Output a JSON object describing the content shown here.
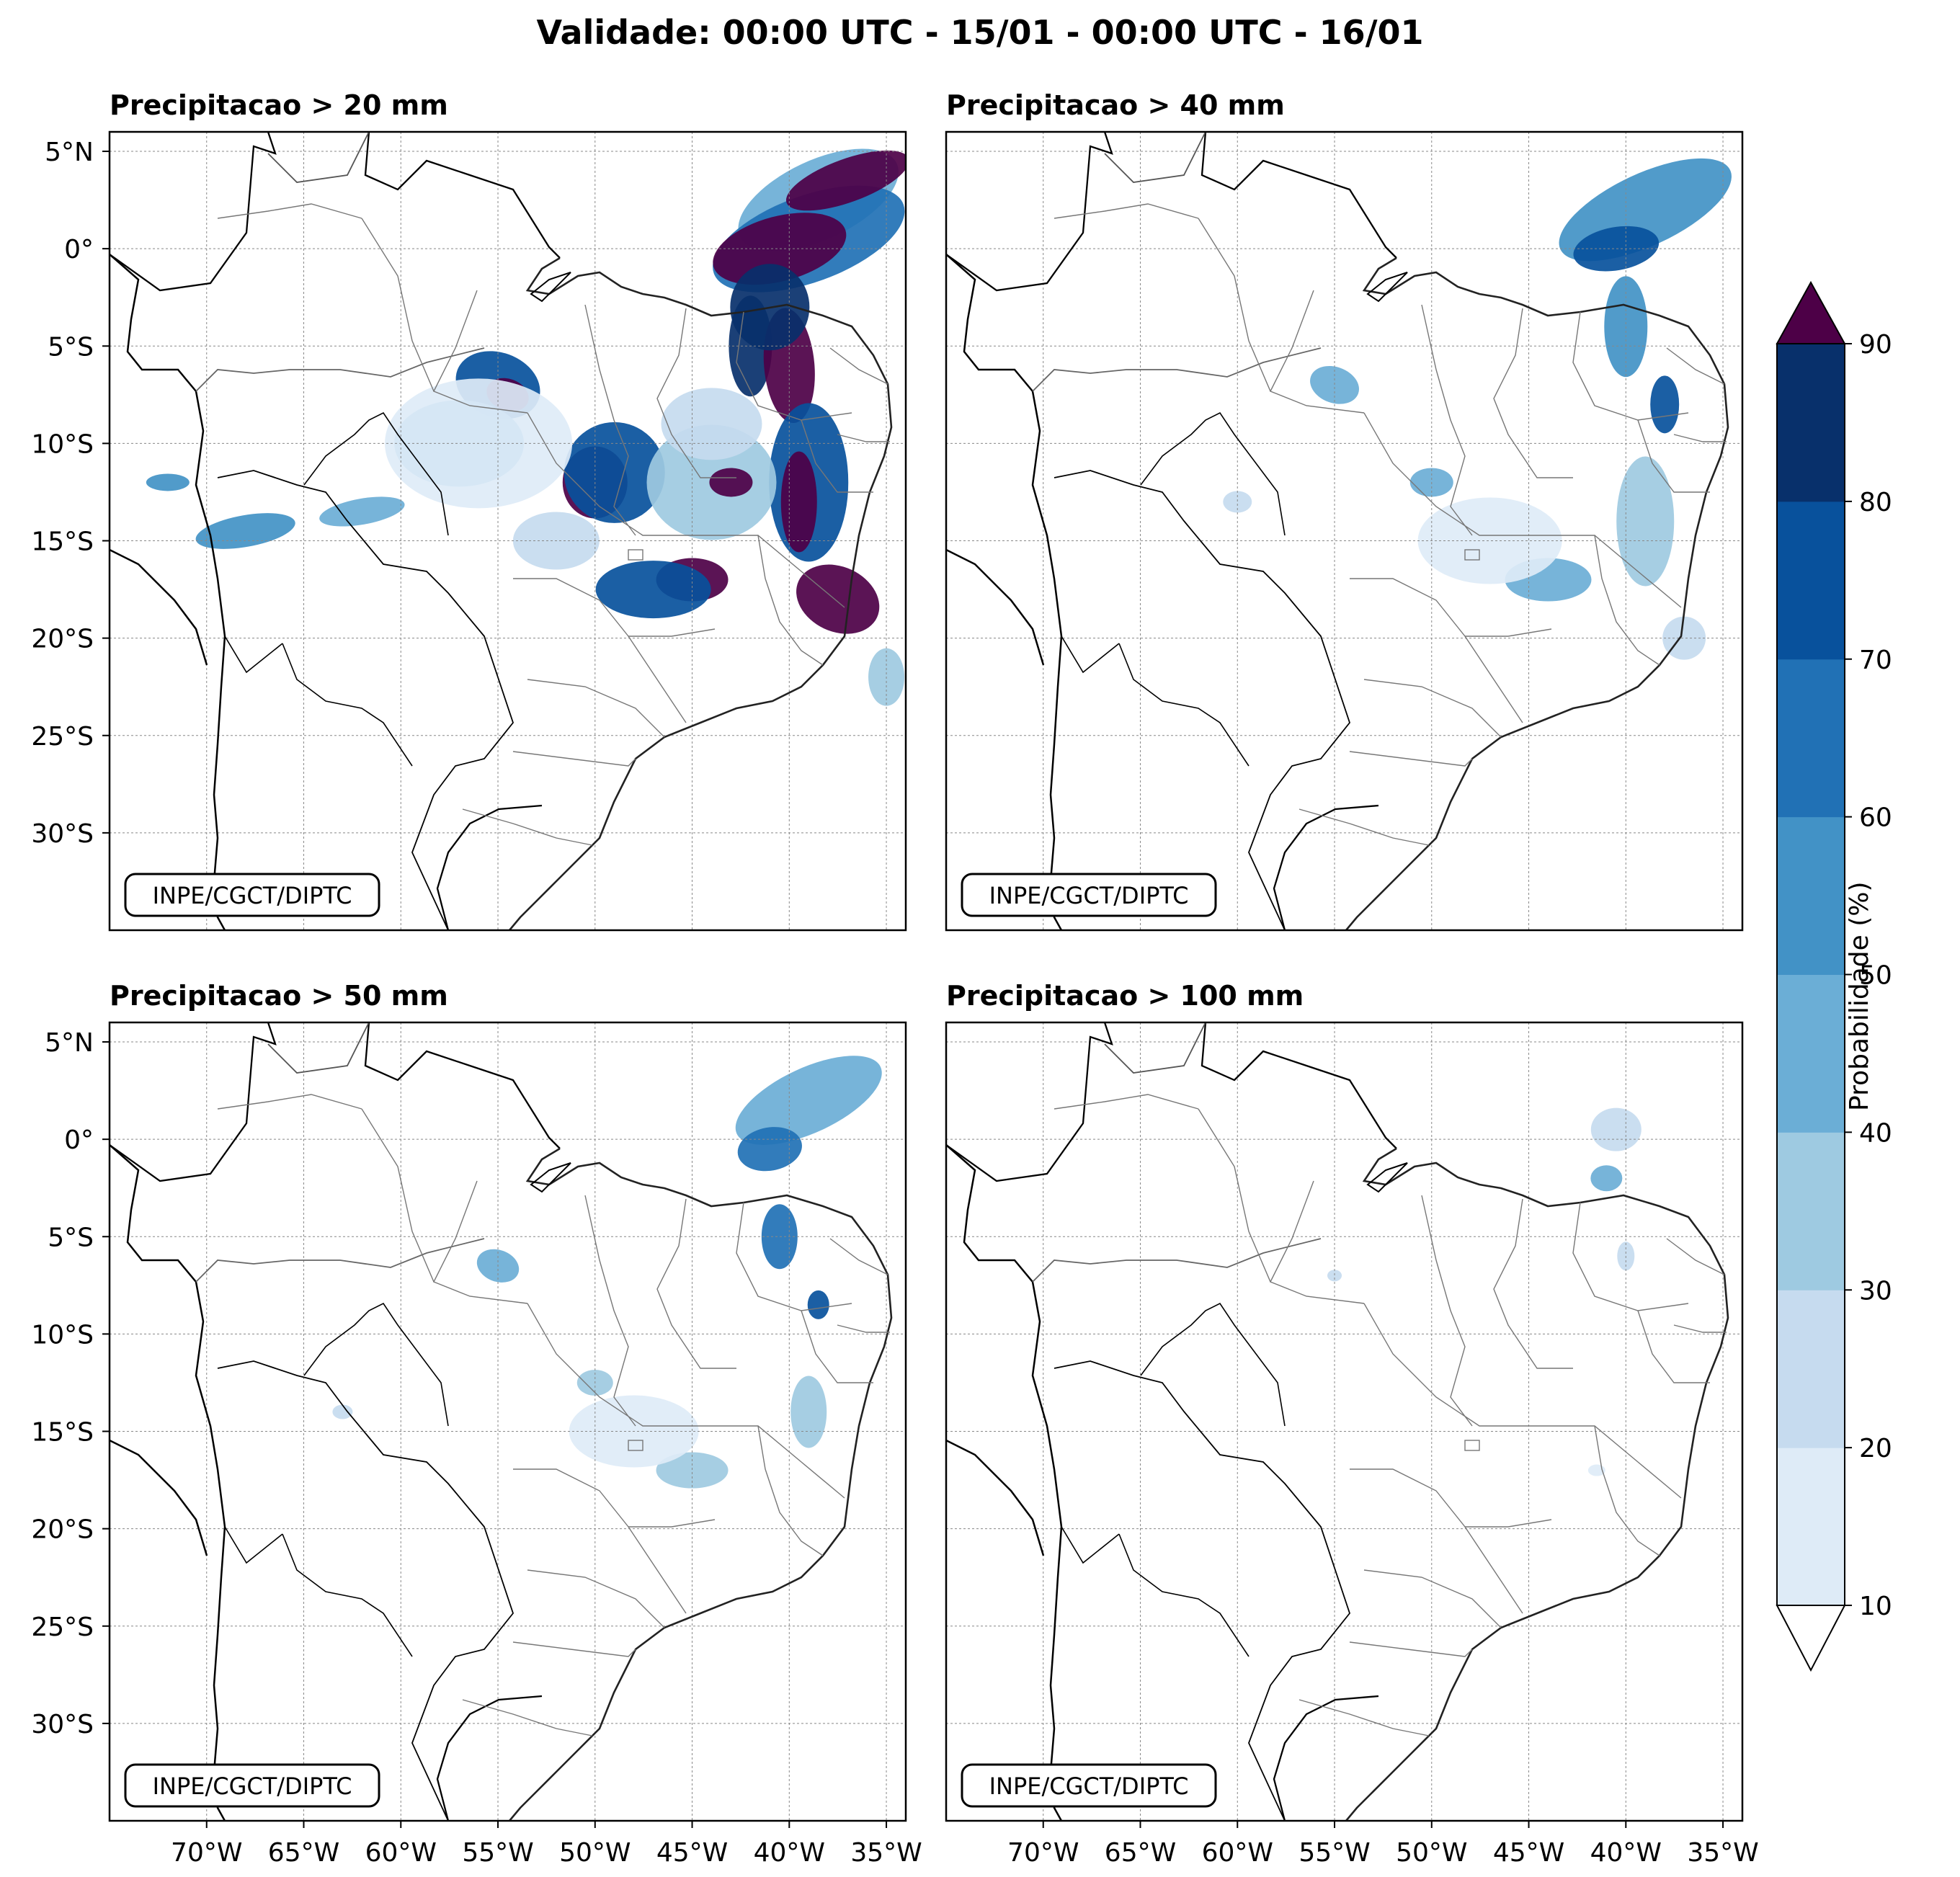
{
  "title": "Validade: 00:00 UTC - 15/01 - 00:00 UTC - 16/01",
  "credit": "INPE/CGCT/DIPTC",
  "panels": [
    {
      "title": "Precipitacao > 20 mm"
    },
    {
      "title": "Precipitacao > 40 mm"
    },
    {
      "title": "Precipitacao > 50 mm"
    },
    {
      "title": "Precipitacao > 100 mm"
    }
  ],
  "axes": {
    "lat_labels": [
      "5°N",
      "0°",
      "5°S",
      "10°S",
      "15°S",
      "20°S",
      "25°S",
      "30°S"
    ],
    "lon_labels": [
      "70°W",
      "65°W",
      "60°W",
      "55°W",
      "50°W",
      "45°W",
      "40°W",
      "35°W"
    ]
  },
  "colorbar": {
    "label": "Probabilidade (%)",
    "ticks": [
      "10",
      "20",
      "30",
      "40",
      "50",
      "60",
      "70",
      "80",
      "90"
    ],
    "colors": [
      "#deebf7",
      "#c6dbef",
      "#9ecae1",
      "#6baed6",
      "#4292c6",
      "#2171b5",
      "#08519c",
      "#08306b"
    ],
    "over_color": "#4d0047",
    "under_color": "#ffffff"
  },
  "chart_data": {
    "type": "probability map",
    "extent": {
      "lon": [
        -75,
        -34
      ],
      "lat": [
        -35,
        6
      ]
    },
    "levels": [
      10,
      20,
      30,
      40,
      50,
      60,
      70,
      80,
      90
    ]
  }
}
